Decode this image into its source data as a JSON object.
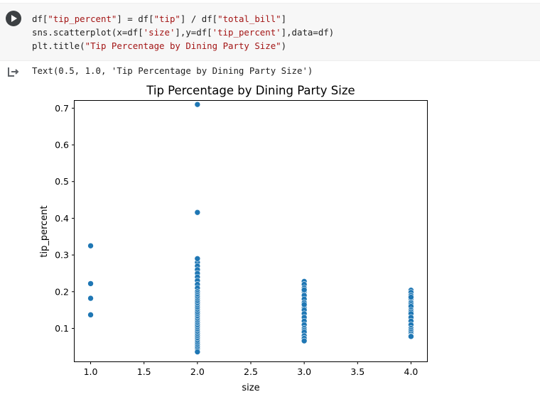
{
  "cell": {
    "code_lines": [
      [
        "df[",
        {
          "s": "\"tip_percent\""
        },
        "] = df[",
        {
          "s": "\"tip\""
        },
        "] / df[",
        {
          "s": "\"total_bill\""
        },
        "]"
      ],
      [
        "sns.scatterplot(x=df[",
        {
          "s": "'size'"
        },
        "],y=df[",
        {
          "s": "'tip_percent'"
        },
        "],data=df)"
      ],
      [
        "plt.title(",
        {
          "s": "\"Tip Percentage by Dining Party Size\""
        },
        ")"
      ]
    ],
    "run_icon": "play-circle-icon"
  },
  "output": {
    "icon": "output-arrow-icon",
    "text": "Text(0.5, 1.0, 'Tip Percentage by Dining Party Size')"
  },
  "chart_data": {
    "type": "scatter",
    "title": "Tip Percentage by Dining Party Size",
    "xlabel": "size",
    "ylabel": "tip_percent",
    "xlim": [
      0.85,
      4.15
    ],
    "ylim": [
      0.01,
      0.72
    ],
    "xticks": [
      1.0,
      1.5,
      2.0,
      2.5,
      3.0,
      3.5,
      4.0
    ],
    "xtick_labels": [
      "1.0",
      "1.5",
      "2.0",
      "2.5",
      "3.0",
      "3.5",
      "4.0"
    ],
    "yticks": [
      0.1,
      0.2,
      0.3,
      0.4,
      0.5,
      0.6,
      0.7
    ],
    "ytick_labels": [
      "0.1",
      "0.2",
      "0.3",
      "0.4",
      "0.5",
      "0.6",
      "0.7"
    ],
    "grid": false,
    "point_color": "#1f77b4",
    "x": [
      1,
      1,
      1,
      1,
      2,
      2,
      2,
      2,
      2,
      2,
      2,
      2,
      2,
      2,
      2,
      2,
      2,
      2,
      2,
      2,
      2,
      2,
      2,
      2,
      2,
      2,
      2,
      2,
      2,
      2,
      2,
      2,
      2,
      2,
      2,
      2,
      2,
      2,
      2,
      2,
      2,
      2,
      2,
      2,
      2,
      2,
      2,
      2,
      2,
      2,
      3,
      3,
      3,
      3,
      3,
      3,
      3,
      3,
      3,
      3,
      3,
      3,
      3,
      3,
      3,
      3,
      3,
      3,
      3,
      3,
      3,
      3,
      4,
      4,
      4,
      4,
      4,
      4,
      4,
      4,
      4,
      4,
      4,
      4,
      4,
      4,
      4,
      4,
      4,
      4,
      4,
      4
    ],
    "y": [
      0.325,
      0.222,
      0.182,
      0.137,
      0.71,
      0.416,
      0.29,
      0.28,
      0.27,
      0.26,
      0.25,
      0.24,
      0.23,
      0.22,
      0.21,
      0.2,
      0.195,
      0.19,
      0.185,
      0.18,
      0.175,
      0.17,
      0.165,
      0.16,
      0.155,
      0.15,
      0.145,
      0.14,
      0.135,
      0.13,
      0.125,
      0.12,
      0.115,
      0.11,
      0.105,
      0.1,
      0.095,
      0.09,
      0.085,
      0.08,
      0.075,
      0.07,
      0.065,
      0.06,
      0.055,
      0.05,
      0.045,
      0.04,
      0.036,
      0.29,
      0.228,
      0.22,
      0.21,
      0.2,
      0.19,
      0.18,
      0.17,
      0.16,
      0.155,
      0.15,
      0.14,
      0.13,
      0.12,
      0.11,
      0.1,
      0.095,
      0.09,
      0.08,
      0.073,
      0.066,
      0.205,
      0.165,
      0.204,
      0.198,
      0.19,
      0.18,
      0.17,
      0.165,
      0.16,
      0.15,
      0.145,
      0.14,
      0.13,
      0.12,
      0.11,
      0.1,
      0.095,
      0.09,
      0.085,
      0.08,
      0.078,
      0.185
    ]
  }
}
